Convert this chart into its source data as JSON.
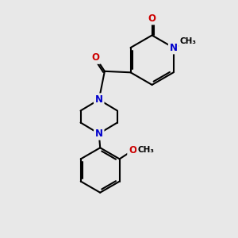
{
  "bg_color": "#e8e8e8",
  "bond_color": "#000000",
  "nitrogen_color": "#0000cc",
  "oxygen_color": "#cc0000",
  "line_width": 1.5,
  "font_size_atom": 8.5,
  "fig_width": 3.0,
  "fig_height": 3.0,
  "dpi": 100,
  "xlim": [
    0,
    10
  ],
  "ylim": [
    0,
    10
  ]
}
